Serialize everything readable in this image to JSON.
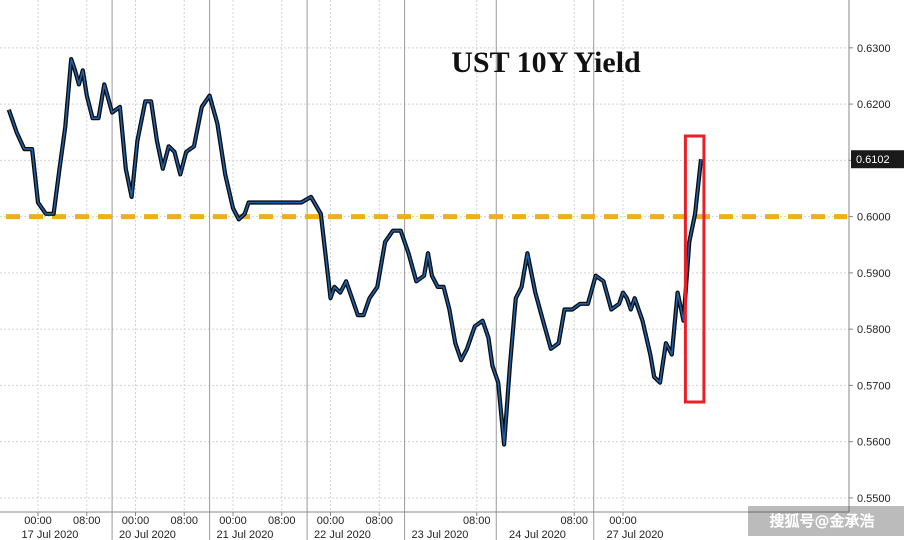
{
  "chart_data": {
    "type": "line",
    "title": "UST 10Y Yield",
    "ylim": [
      0.5475,
      0.6385
    ],
    "y_ticks": [
      "0.6300",
      "0.6200",
      "0.6100",
      "0.6000",
      "0.5900",
      "0.5800",
      "0.5700",
      "0.5600",
      "0.5500"
    ],
    "y_tick_values": [
      0.63,
      0.62,
      0.61,
      0.6,
      0.59,
      0.58,
      0.57,
      0.56,
      0.55
    ],
    "last_value": 0.6102,
    "last_value_label": "0.6102",
    "reference_line": {
      "value": 0.6,
      "color": "#f0ad1c",
      "style": "dashed"
    },
    "highlight_box": {
      "color": "#e8202a",
      "x_start": 3.32,
      "x_end": 3.415
    },
    "grid": true,
    "x_time_labels": [
      {
        "x": 0.0,
        "label": "00:00"
      },
      {
        "x": 0.25,
        "label": "08:00"
      },
      {
        "x": 0.5,
        "label": "00:00"
      },
      {
        "x": 0.75,
        "label": "08:00"
      },
      {
        "x": 1.0,
        "label": "00:00"
      },
      {
        "x": 1.25,
        "label": "08:00"
      },
      {
        "x": 1.5,
        "label": "00:00"
      },
      {
        "x": 1.75,
        "label": "08:00"
      },
      {
        "x": 2.25,
        "label": "08:00"
      },
      {
        "x": 2.75,
        "label": "08:00"
      },
      {
        "x": 3.0,
        "label": "00:00"
      }
    ],
    "x_date_labels": [
      {
        "x": 0.0,
        "label": "17 Jul 2020"
      },
      {
        "x": 0.5,
        "label": "20 Jul 2020"
      },
      {
        "x": 1.0,
        "label": "21 Jul 2020"
      },
      {
        "x": 1.5,
        "label": "22 Jul 2020"
      },
      {
        "x": 2.0,
        "label": "23 Jul 2020"
      },
      {
        "x": 2.5,
        "label": "24 Jul 2020"
      },
      {
        "x": 3.0,
        "label": "27 Jul 2020"
      }
    ],
    "x_separators": [
      0.38,
      0.88,
      1.38,
      1.88,
      2.35,
      2.85
    ],
    "series": [
      {
        "color": "#1f5fa8",
        "x": [
          -0.15,
          -0.11,
          -0.07,
          -0.03,
          0.0,
          0.04,
          0.08,
          0.11,
          0.14,
          0.17,
          0.19,
          0.21,
          0.23,
          0.25,
          0.28,
          0.31,
          0.34,
          0.38,
          0.42,
          0.45,
          0.48,
          0.51,
          0.55,
          0.58,
          0.61,
          0.64,
          0.67,
          0.7,
          0.73,
          0.76,
          0.8,
          0.84,
          0.88,
          0.92,
          0.96,
          1.0,
          1.03,
          1.06,
          1.08,
          1.1,
          1.12,
          1.15,
          1.19,
          1.23,
          1.27,
          1.31,
          1.35,
          1.4,
          1.45,
          1.49,
          1.5,
          1.52,
          1.55,
          1.58,
          1.61,
          1.64,
          1.67,
          1.7,
          1.74,
          1.78,
          1.82,
          1.86,
          1.9,
          1.94,
          1.98,
          2.0,
          2.02,
          2.05,
          2.08,
          2.11,
          2.14,
          2.17,
          2.2,
          2.24,
          2.28,
          2.31,
          2.33,
          2.36,
          2.39,
          2.42,
          2.45,
          2.48,
          2.51,
          2.55,
          2.59,
          2.63,
          2.67,
          2.7,
          2.74,
          2.78,
          2.82,
          2.86,
          2.9,
          2.94,
          2.98,
          3.0,
          3.02,
          3.04,
          3.06,
          3.08,
          3.1,
          3.12,
          3.14,
          3.16,
          3.19,
          3.22,
          3.25,
          3.28,
          3.31,
          3.34,
          3.37,
          3.4
        ],
        "values": [
          0.619,
          0.615,
          0.612,
          0.612,
          0.6025,
          0.6005,
          0.6005,
          0.6085,
          0.616,
          0.628,
          0.626,
          0.6235,
          0.626,
          0.6215,
          0.6175,
          0.6175,
          0.6235,
          0.6185,
          0.6195,
          0.6085,
          0.6035,
          0.6135,
          0.6205,
          0.6205,
          0.6135,
          0.6085,
          0.6125,
          0.6115,
          0.6075,
          0.6115,
          0.6125,
          0.6195,
          0.6215,
          0.6165,
          0.6075,
          0.6015,
          0.5995,
          0.6005,
          0.6025,
          0.6025,
          0.6025,
          0.6025,
          0.6025,
          0.6025,
          0.6025,
          0.6025,
          0.6025,
          0.6035,
          0.6005,
          0.5885,
          0.5855,
          0.5875,
          0.5865,
          0.5885,
          0.5855,
          0.5825,
          0.5825,
          0.5855,
          0.5875,
          0.5955,
          0.5975,
          0.5975,
          0.5935,
          0.5885,
          0.5895,
          0.5935,
          0.5895,
          0.5875,
          0.5875,
          0.5835,
          0.5775,
          0.5745,
          0.5765,
          0.5805,
          0.5815,
          0.5785,
          0.5735,
          0.5705,
          0.5595,
          0.5735,
          0.5855,
          0.5875,
          0.5935,
          0.5865,
          0.5815,
          0.5765,
          0.5775,
          0.5835,
          0.5835,
          0.5845,
          0.5845,
          0.5895,
          0.5885,
          0.5835,
          0.5845,
          0.5865,
          0.5855,
          0.5835,
          0.5855,
          0.5835,
          0.5815,
          0.5785,
          0.5755,
          0.5715,
          0.5705,
          0.5775,
          0.5755,
          0.5865,
          0.5815,
          0.5955,
          0.6005,
          0.6102
        ]
      }
    ]
  },
  "watermark": "搜狐号@金承浩"
}
